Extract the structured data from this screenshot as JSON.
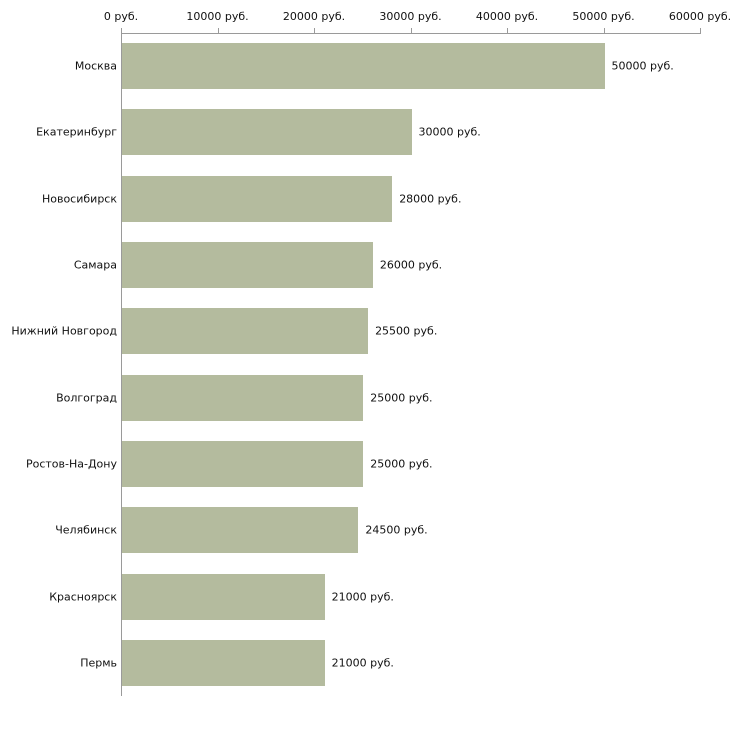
{
  "chart_data": {
    "type": "bar",
    "orientation": "horizontal",
    "title": "",
    "xlabel": "",
    "ylabel": "",
    "xlim": [
      0,
      60000
    ],
    "x_ticks": [
      0,
      10000,
      20000,
      30000,
      40000,
      50000,
      60000
    ],
    "x_tick_labels": [
      "0 руб.",
      "10000 руб.",
      "20000 руб.",
      "30000 руб.",
      "40000 руб.",
      "50000 руб.",
      "60000 руб."
    ],
    "categories": [
      "Москва",
      "Екатеринбург",
      "Новосибирск",
      "Самара",
      "Нижний Новгород",
      "Волгоград",
      "Ростов-На-Дону",
      "Челябинск",
      "Красноярск",
      "Пермь"
    ],
    "values": [
      50000,
      30000,
      28000,
      26000,
      25500,
      25000,
      25000,
      24500,
      21000,
      21000
    ],
    "value_labels": [
      "50000 руб.",
      "30000 руб.",
      "28000 руб.",
      "26000 руб.",
      "25500 руб.",
      "25000 руб.",
      "25000 руб.",
      "24500 руб.",
      "21000 руб.",
      "21000 руб."
    ],
    "bar_color": "#b4bb9e",
    "axis_color": "#9a9a9a",
    "text_color": "#111111",
    "background": "#ffffff",
    "grid": false,
    "legend": null,
    "axis_position": "top"
  }
}
